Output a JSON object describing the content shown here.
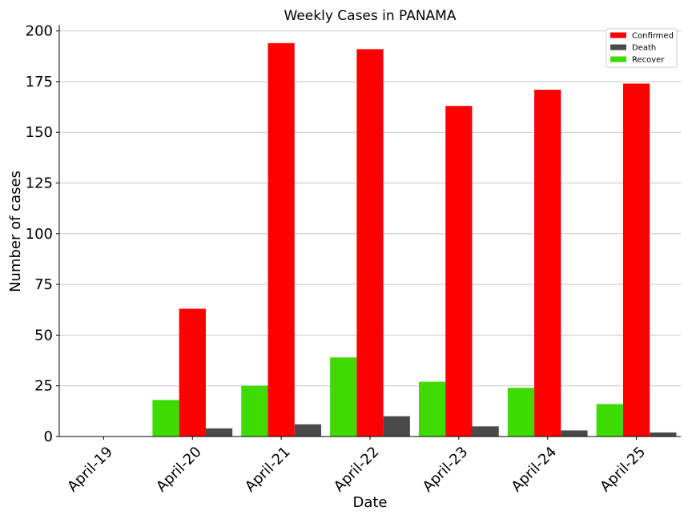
{
  "chart_data": {
    "type": "bar",
    "title": "Weekly Cases in PANAMA",
    "xlabel": "Date",
    "ylabel": "Number of cases",
    "categories": [
      "April-19",
      "April-20",
      "April-21",
      "April-22",
      "April-23",
      "April-24",
      "April-25"
    ],
    "series": [
      {
        "name": "Recover",
        "color": "#3edb00",
        "values": [
          0,
          18,
          25,
          39,
          27,
          24,
          16
        ]
      },
      {
        "name": "Confirmed",
        "color": "#ff0000",
        "values": [
          0,
          63,
          194,
          191,
          163,
          171,
          174
        ]
      },
      {
        "name": "Death",
        "color": "#4a4a4a",
        "values": [
          0,
          4,
          6,
          10,
          5,
          3,
          2
        ]
      }
    ],
    "legend_order": [
      "Confirmed",
      "Death",
      "Recover"
    ],
    "legend_position": "top-right",
    "ylim": [
      0,
      203
    ],
    "yticks": [
      0,
      25,
      50,
      75,
      100,
      125,
      150,
      175,
      200
    ],
    "grid": "horizontal"
  }
}
